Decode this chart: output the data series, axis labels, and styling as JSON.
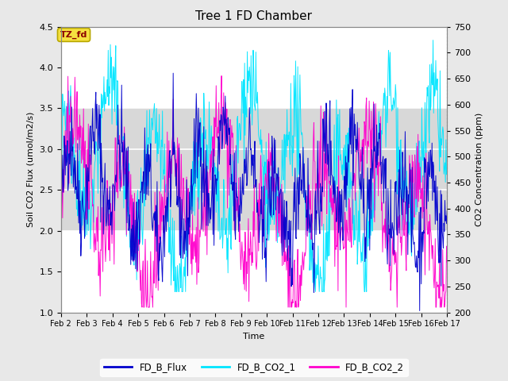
{
  "title": "Tree 1 FD Chamber",
  "xlabel": "Time",
  "ylabel_left": "Soil CO2 Flux (umol/m2/s)",
  "ylabel_right": "CO2 Concentration (ppm)",
  "ylim_left": [
    1.0,
    4.5
  ],
  "ylim_right": [
    200,
    750
  ],
  "xtick_labels": [
    "Feb 2",
    "Feb 3",
    "Feb 4",
    "Feb 5",
    "Feb 6",
    "Feb 7",
    "Feb 8",
    "Feb 9",
    "Feb 10",
    "Feb 11",
    "Feb 12",
    "Feb 13",
    "Feb 14",
    "Feb 15",
    "Feb 16",
    "Feb 17"
  ],
  "annotation_text": "TZ_fd",
  "bg_color": "#e8e8e8",
  "plot_bg_color": "#ffffff",
  "band_color": "#d8d8d8",
  "flux_color": "#0000cc",
  "co2_1_color": "#00e5ff",
  "co2_2_color": "#ff00cc",
  "legend_labels": [
    "FD_B_Flux",
    "FD_B_CO2_1",
    "FD_B_CO2_2"
  ],
  "n_days": 15,
  "points_per_day": 48,
  "right_axis_ticks": [
    200,
    250,
    300,
    350,
    400,
    450,
    500,
    550,
    600,
    650,
    700,
    750
  ],
  "left_axis_ticks": [
    1.0,
    1.5,
    2.0,
    2.5,
    3.0,
    3.5,
    4.0,
    4.5
  ],
  "seed": 42
}
